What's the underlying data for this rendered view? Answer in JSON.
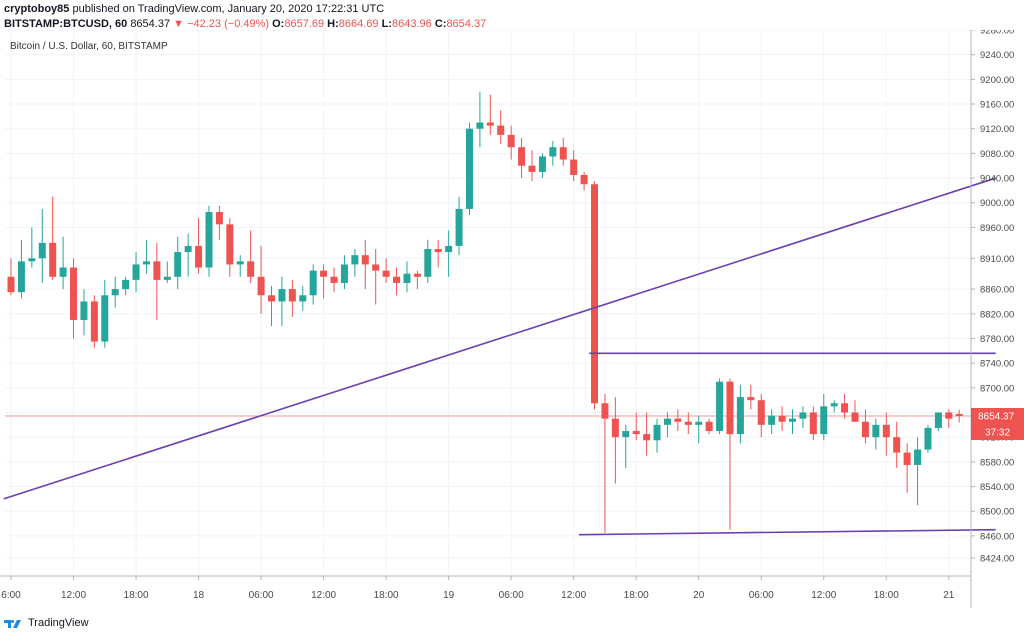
{
  "header": {
    "author": "cryptoboy85",
    "published_text": " published on TradingView.com, January 20, 2020 17:22:31 UTC",
    "symbol": "BITSTAMP:BTCUSD, 60",
    "last": "8654.37",
    "change": "−42.23 (−0.49%)",
    "open_label": "O:",
    "open": "8657.69",
    "high_label": "H:",
    "high": "8664.69",
    "low_label": "L:",
    "low": "8643.96",
    "close_label": "C:",
    "close": "8654.37"
  },
  "footer": {
    "brand": "TradingView",
    "logo_icon": "tradingview-logo-icon"
  },
  "colors": {
    "up": "#26a69a",
    "down": "#ef5350",
    "line": "#6a3fb0",
    "grid": "#f0f3fa",
    "price_line": "#ef9a9a",
    "axis_text": "#4a4a4a"
  },
  "chart_data": {
    "type": "candlestick",
    "title": "Bitcoin / U.S. Dollar, 60, BITSTAMP",
    "ylim": [
      8395,
      9280
    ],
    "y_ticks": [
      8424,
      8460,
      8500,
      8540,
      8580,
      8620,
      8660,
      8700,
      8740,
      8780,
      8820,
      8860,
      8910,
      8960,
      9000,
      9040,
      9080,
      9120,
      9160,
      9200,
      9240,
      9280
    ],
    "x_tick_labels": [
      "6:00",
      "12:00",
      "18:00",
      "18",
      "06:00",
      "12:00",
      "18:00",
      "19",
      "06:00",
      "12:00",
      "18:00",
      "20",
      "06:00",
      "12:00",
      "18:00",
      "21"
    ],
    "x_tick_bar_index": [
      0,
      6,
      12,
      18,
      24,
      30,
      36,
      42,
      48,
      54,
      60,
      66,
      72,
      78,
      84,
      90
    ],
    "price_label": "8654.37",
    "countdown_label": "37:32",
    "candles": [
      [
        8880,
        8910,
        8850,
        8855
      ],
      [
        8855,
        8940,
        8845,
        8905
      ],
      [
        8905,
        8960,
        8895,
        8910
      ],
      [
        8910,
        8990,
        8870,
        8935
      ],
      [
        8935,
        9010,
        8875,
        8880
      ],
      [
        8880,
        8945,
        8860,
        8895
      ],
      [
        8895,
        8910,
        8780,
        8810
      ],
      [
        8810,
        8860,
        8785,
        8840
      ],
      [
        8840,
        8850,
        8765,
        8775
      ],
      [
        8775,
        8875,
        8765,
        8850
      ],
      [
        8850,
        8880,
        8830,
        8860
      ],
      [
        8860,
        8880,
        8850,
        8875
      ],
      [
        8875,
        8920,
        8855,
        8900
      ],
      [
        8900,
        8940,
        8885,
        8905
      ],
      [
        8905,
        8935,
        8810,
        8875
      ],
      [
        8875,
        8905,
        8870,
        8880
      ],
      [
        8880,
        8945,
        8860,
        8920
      ],
      [
        8920,
        8950,
        8880,
        8930
      ],
      [
        8930,
        8975,
        8885,
        8895
      ],
      [
        8895,
        8995,
        8880,
        8985
      ],
      [
        8985,
        8995,
        8940,
        8965
      ],
      [
        8965,
        8975,
        8880,
        8900
      ],
      [
        8900,
        8915,
        8880,
        8905
      ],
      [
        8905,
        8955,
        8870,
        8880
      ],
      [
        8880,
        8930,
        8820,
        8850
      ],
      [
        8850,
        8865,
        8800,
        8840
      ],
      [
        8840,
        8880,
        8800,
        8860
      ],
      [
        8860,
        8875,
        8815,
        8840
      ],
      [
        8840,
        8865,
        8825,
        8850
      ],
      [
        8850,
        8900,
        8835,
        8890
      ],
      [
        8890,
        8900,
        8845,
        8880
      ],
      [
        8880,
        8895,
        8855,
        8870
      ],
      [
        8870,
        8915,
        8860,
        8900
      ],
      [
        8900,
        8925,
        8880,
        8915
      ],
      [
        8915,
        8940,
        8860,
        8900
      ],
      [
        8900,
        8925,
        8835,
        8890
      ],
      [
        8890,
        8910,
        8870,
        8880
      ],
      [
        8880,
        8895,
        8850,
        8870
      ],
      [
        8870,
        8905,
        8855,
        8885
      ],
      [
        8885,
        8890,
        8860,
        8880
      ],
      [
        8880,
        8940,
        8870,
        8925
      ],
      [
        8925,
        8940,
        8895,
        8920
      ],
      [
        8920,
        8955,
        8880,
        8930
      ],
      [
        8930,
        9010,
        8915,
        8990
      ],
      [
        8990,
        9130,
        8980,
        9120
      ],
      [
        9120,
        9180,
        9090,
        9130
      ],
      [
        9130,
        9175,
        9110,
        9125
      ],
      [
        9125,
        9150,
        9095,
        9110
      ],
      [
        9110,
        9125,
        9070,
        9090
      ],
      [
        9090,
        9105,
        9040,
        9060
      ],
      [
        9060,
        9085,
        9035,
        9050
      ],
      [
        9050,
        9080,
        9040,
        9075
      ],
      [
        9075,
        9100,
        9060,
        9090
      ],
      [
        9090,
        9105,
        9060,
        9070
      ],
      [
        9070,
        9085,
        9035,
        9045
      ],
      [
        9045,
        9050,
        9020,
        9030
      ],
      [
        9030,
        9035,
        8665,
        8675
      ],
      [
        8675,
        8690,
        8465,
        8650
      ],
      [
        8650,
        8685,
        8545,
        8620
      ],
      [
        8620,
        8640,
        8570,
        8630
      ],
      [
        8630,
        8660,
        8615,
        8625
      ],
      [
        8625,
        8660,
        8590,
        8615
      ],
      [
        8615,
        8650,
        8595,
        8640
      ],
      [
        8640,
        8660,
        8620,
        8650
      ],
      [
        8650,
        8665,
        8630,
        8645
      ],
      [
        8645,
        8660,
        8625,
        8640
      ],
      [
        8640,
        8655,
        8610,
        8645
      ],
      [
        8645,
        8650,
        8625,
        8630
      ],
      [
        8630,
        8715,
        8625,
        8710
      ],
      [
        8710,
        8715,
        8470,
        8625
      ],
      [
        8625,
        8705,
        8610,
        8685
      ],
      [
        8685,
        8705,
        8665,
        8680
      ],
      [
        8680,
        8690,
        8620,
        8640
      ],
      [
        8640,
        8665,
        8625,
        8655
      ],
      [
        8655,
        8670,
        8630,
        8645
      ],
      [
        8645,
        8665,
        8625,
        8650
      ],
      [
        8650,
        8670,
        8635,
        8660
      ],
      [
        8660,
        8670,
        8615,
        8625
      ],
      [
        8625,
        8690,
        8615,
        8670
      ],
      [
        8670,
        8680,
        8660,
        8675
      ],
      [
        8675,
        8690,
        8650,
        8660
      ],
      [
        8660,
        8680,
        8645,
        8645
      ],
      [
        8645,
        8665,
        8610,
        8620
      ],
      [
        8620,
        8650,
        8600,
        8640
      ],
      [
        8640,
        8660,
        8590,
        8620
      ],
      [
        8620,
        8645,
        8570,
        8595
      ],
      [
        8595,
        8610,
        8530,
        8575
      ],
      [
        8575,
        8620,
        8510,
        8600
      ],
      [
        8600,
        8640,
        8595,
        8635
      ],
      [
        8635,
        8660,
        8630,
        8660
      ],
      [
        8660,
        8665,
        8635,
        8650
      ],
      [
        8657.69,
        8664.69,
        8643.96,
        8654.37
      ]
    ],
    "trendlines": [
      {
        "name": "ascending-trendline",
        "from": [
          -0.7,
          8520
        ],
        "to": [
          94.5,
          9040
        ]
      },
      {
        "name": "range-top-line",
        "from": [
          55.5,
          8756
        ],
        "to": [
          94.5,
          8756
        ]
      },
      {
        "name": "range-bottom-line",
        "from": [
          54.5,
          8462
        ],
        "to": [
          94.5,
          8470
        ]
      }
    ]
  }
}
